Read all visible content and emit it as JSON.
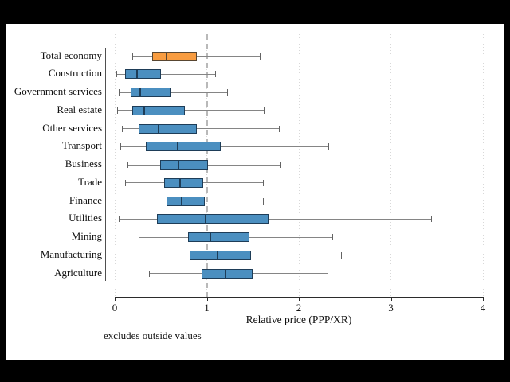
{
  "chart_data": {
    "type": "boxplot",
    "orientation": "horizontal",
    "title": "",
    "xlabel": "Relative price (PPP/XR)",
    "note": "excludes outside values",
    "xlim": [
      0,
      4
    ],
    "xticks": [
      0,
      1,
      2,
      3,
      4
    ],
    "reference_line_x": 1,
    "grid": "dotted vertical lines at integer ticks",
    "legend": "none",
    "rows": [
      {
        "label": "Total economy",
        "low": 0.19,
        "q1": 0.41,
        "median": 0.56,
        "q3": 0.89,
        "high": 1.58,
        "highlight": true
      },
      {
        "label": "Construction",
        "low": 0.02,
        "q1": 0.11,
        "median": 0.24,
        "q3": 0.5,
        "high": 1.09,
        "highlight": false
      },
      {
        "label": "Government services",
        "low": 0.04,
        "q1": 0.17,
        "median": 0.28,
        "q3": 0.61,
        "high": 1.22,
        "highlight": false
      },
      {
        "label": "Real estate",
        "low": 0.03,
        "q1": 0.19,
        "median": 0.32,
        "q3": 0.76,
        "high": 1.62,
        "highlight": false
      },
      {
        "label": "Other services",
        "low": 0.08,
        "q1": 0.26,
        "median": 0.48,
        "q3": 0.89,
        "high": 1.78,
        "highlight": false
      },
      {
        "label": "Transport",
        "low": 0.06,
        "q1": 0.34,
        "median": 0.68,
        "q3": 1.15,
        "high": 2.32,
        "highlight": false
      },
      {
        "label": "Business",
        "low": 0.14,
        "q1": 0.49,
        "median": 0.69,
        "q3": 1.01,
        "high": 1.8,
        "highlight": false
      },
      {
        "label": "Trade",
        "low": 0.11,
        "q1": 0.54,
        "median": 0.71,
        "q3": 0.96,
        "high": 1.61,
        "highlight": false
      },
      {
        "label": "Finance",
        "low": 0.3,
        "q1": 0.56,
        "median": 0.73,
        "q3": 0.98,
        "high": 1.61,
        "highlight": false
      },
      {
        "label": "Utilities",
        "low": 0.04,
        "q1": 0.46,
        "median": 0.99,
        "q3": 1.67,
        "high": 3.44,
        "highlight": false
      },
      {
        "label": "Mining",
        "low": 0.26,
        "q1": 0.8,
        "median": 1.04,
        "q3": 1.46,
        "high": 2.36,
        "highlight": false
      },
      {
        "label": "Manufacturing",
        "low": 0.17,
        "q1": 0.81,
        "median": 1.12,
        "q3": 1.48,
        "high": 2.46,
        "highlight": false
      },
      {
        "label": "Agriculture",
        "low": 0.37,
        "q1": 0.94,
        "median": 1.2,
        "q3": 1.5,
        "high": 2.31,
        "highlight": false
      }
    ],
    "colors": {
      "box_fill": "#4b8fc0",
      "box_border": "#1e3d58",
      "highlight_fill": "#f89c40",
      "highlight_border": "#584631",
      "whisker": "#858585",
      "cap": "#636363",
      "reference_line": "#b9b9b9",
      "gridline": "#d8d8d8",
      "axis": "#2b2b2b",
      "text": "#111111",
      "background": "#ffffff",
      "frame": "#000000"
    }
  }
}
